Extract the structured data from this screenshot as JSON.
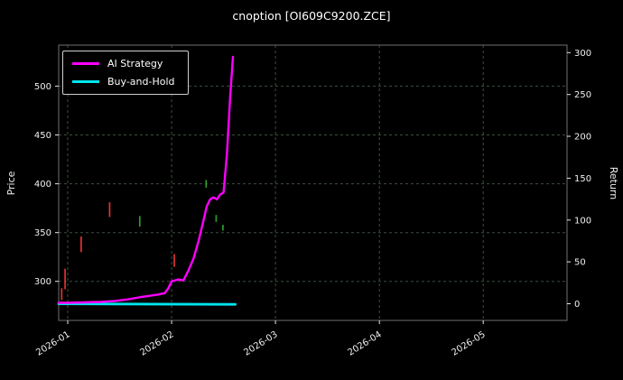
{
  "chart_data": {
    "type": "line",
    "title": "cnoption [OI609C9200.ZCE]",
    "ylabel_left": "Price",
    "ylabel_right": "Return",
    "legend_position": "upper left",
    "grid": true,
    "colors": {
      "background": "#000000",
      "text": "#ffffff",
      "grid": "#3d4f3d",
      "ai_strategy": "#ff00ff",
      "buy_and_hold": "#00e5ee",
      "candle_up": "#2e9b2e",
      "candle_down": "#e83030"
    },
    "xlim": [
      -2.7,
      149
    ],
    "ylim_price": [
      260,
      542
    ],
    "ylim_return": [
      -20,
      309
    ],
    "price_ticks": [
      300,
      350,
      400,
      450,
      500
    ],
    "return_ticks": [
      0,
      50,
      100,
      150,
      200,
      250,
      300
    ],
    "x_ticks": [
      {
        "t": 0,
        "label": "2026-01"
      },
      {
        "t": 31,
        "label": "2026-02"
      },
      {
        "t": 62,
        "label": "2026-03"
      },
      {
        "t": 93,
        "label": "2026-04"
      },
      {
        "t": 124,
        "label": "2026-05"
      }
    ],
    "series": [
      {
        "name": "AI Strategy",
        "color": "#ff00ff",
        "axis": "price",
        "points": [
          [
            -2.7,
            278
          ],
          [
            0,
            278
          ],
          [
            5,
            278.5
          ],
          [
            10,
            279
          ],
          [
            14,
            280
          ],
          [
            18,
            281.5
          ],
          [
            22,
            284
          ],
          [
            25,
            285.5
          ],
          [
            27,
            286.5
          ],
          [
            29,
            288
          ],
          [
            30,
            293
          ],
          [
            31,
            300
          ],
          [
            33,
            302
          ],
          [
            34.5,
            301
          ],
          [
            36,
            311
          ],
          [
            37.5,
            323
          ],
          [
            39,
            341
          ],
          [
            40.5,
            362
          ],
          [
            41.5,
            377
          ],
          [
            42.5,
            384
          ],
          [
            43.5,
            386
          ],
          [
            44.5,
            384
          ],
          [
            45.5,
            389
          ],
          [
            46.5,
            391
          ],
          [
            47.5,
            430
          ],
          [
            48.5,
            490
          ],
          [
            49.3,
            530
          ]
        ]
      },
      {
        "name": "Buy-and-Hold",
        "color": "#00e5ee",
        "axis": "price",
        "points": [
          [
            -2.7,
            277
          ],
          [
            50,
            276.5
          ]
        ]
      }
    ],
    "candles": [
      {
        "t": -1.8,
        "low": 281,
        "high": 293,
        "color": "#e83030"
      },
      {
        "t": -0.8,
        "low": 292,
        "high": 313,
        "color": "#e83030"
      },
      {
        "t": 4,
        "low": 330,
        "high": 346,
        "color": "#e83030"
      },
      {
        "t": 12.5,
        "low": 366,
        "high": 381,
        "color": "#e83030"
      },
      {
        "t": 21.5,
        "low": 356,
        "high": 367,
        "color": "#2e9b2e"
      },
      {
        "t": 31.8,
        "low": 315,
        "high": 328,
        "color": "#e83030"
      },
      {
        "t": 41.3,
        "low": 396,
        "high": 404,
        "color": "#2e9b2e"
      },
      {
        "t": 44.3,
        "low": 361,
        "high": 368,
        "color": "#2e9b2e"
      },
      {
        "t": 46.3,
        "low": 352,
        "high": 358,
        "color": "#2e9b2e"
      }
    ]
  }
}
